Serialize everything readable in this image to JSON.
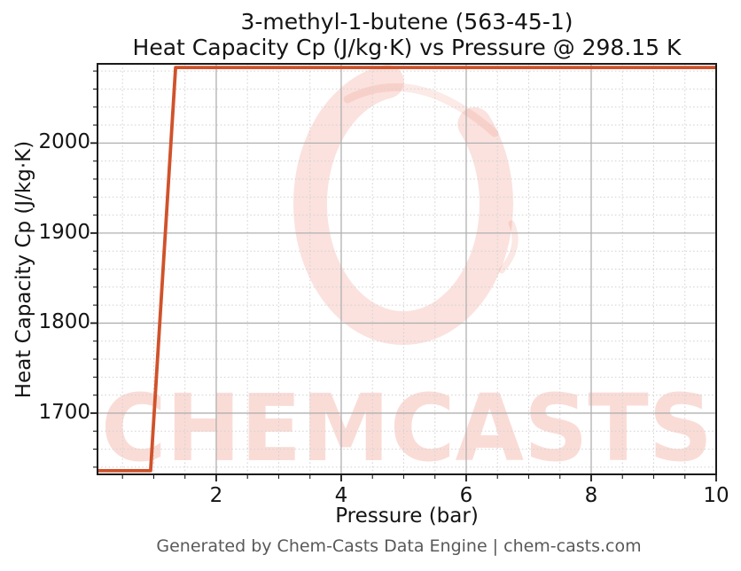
{
  "header": {
    "title_line1": "3-methyl-1-butene (563-45-1)",
    "title_line2": "Heat Capacity Cp (J/kg·K) vs Pressure @ 298.15 K"
  },
  "footer": {
    "credit": "Generated by Chem-Casts Data Engine | chem-casts.com"
  },
  "watermark": {
    "text": "CHEMCASTS",
    "logo": "brush-circle-logo",
    "color": "#e8604a",
    "opacity": 0.22
  },
  "colors": {
    "line": "#d0522b",
    "grid_major": "#b0b0b0",
    "grid_minor": "#d2d2d2",
    "spine": "#1a1a1a",
    "tick_text": "#141414",
    "footer_text": "#595959"
  },
  "chart_data": {
    "type": "line",
    "title": "3-methyl-1-butene (563-45-1) — Heat Capacity Cp (J/kg·K) vs Pressure @ 298.15 K",
    "xlabel": "Pressure (bar)",
    "ylabel": "Heat Capacity Cp (J/kg·K)",
    "xlim": [
      0.1,
      10
    ],
    "ylim": [
      1632,
      2088
    ],
    "xticks": [
      2,
      4,
      6,
      8,
      10
    ],
    "yticks": [
      1700,
      1800,
      1900,
      2000
    ],
    "minor_x_step": 0.5,
    "minor_y_step": 20,
    "grid": "major-solid, minor-dotted",
    "legend_position": "none",
    "series": [
      {
        "name": "Heat Capacity Cp @ 298.15 K",
        "x": [
          0.1,
          0.95,
          1.35,
          10
        ],
        "y": [
          1636,
          1636,
          2084,
          2084
        ]
      }
    ]
  }
}
